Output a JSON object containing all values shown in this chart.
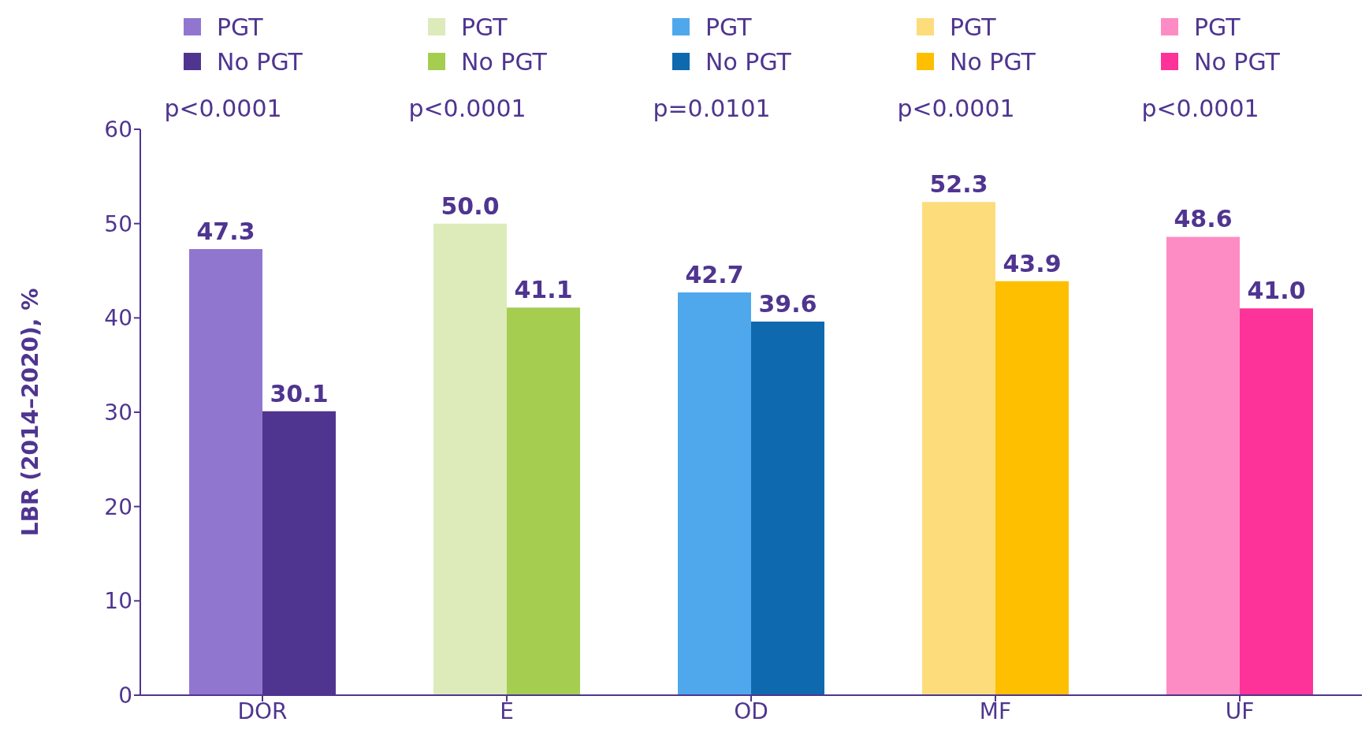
{
  "chart_data": {
    "type": "bar",
    "ylabel": "LBR (2014–2020), %",
    "categories": [
      "DOR",
      "E",
      "OD",
      "MF",
      "UF"
    ],
    "series": [
      {
        "name": "PGT",
        "colors": [
          "#9176d0",
          "#dcebb9",
          "#4fa8ec",
          "#fddd7b",
          "#fd8cc4"
        ],
        "values": [
          47.3,
          50.0,
          42.7,
          52.3,
          48.6
        ],
        "value_labels": [
          "47.3",
          "50.0",
          "42.7",
          "52.3",
          "48.6"
        ]
      },
      {
        "name": "No PGT",
        "colors": [
          "#4f3590",
          "#a5cd50",
          "#0f69ae",
          "#fdbf00",
          "#fd3399"
        ],
        "values": [
          30.1,
          41.1,
          39.6,
          43.9,
          41.0
        ],
        "value_labels": [
          "30.1",
          "41.1",
          "39.6",
          "43.9",
          "41.0"
        ]
      }
    ],
    "annotations": [
      "p<0.0001",
      "p<0.0001",
      "p=0.0101",
      "p<0.0001",
      "p<0.0001"
    ],
    "ylim": [
      0,
      60
    ],
    "yticks": [
      0,
      10,
      20,
      30,
      40,
      50,
      60
    ],
    "legend": "top",
    "grid": false
  }
}
